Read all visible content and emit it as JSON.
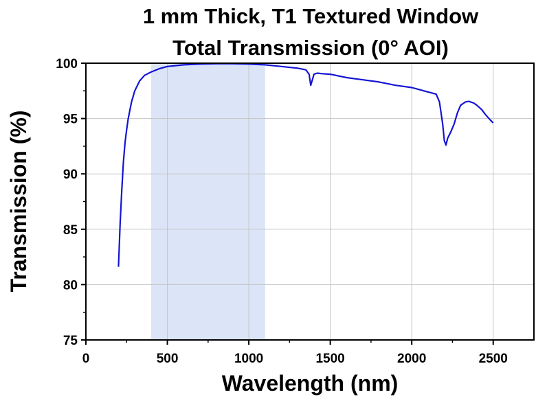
{
  "chart_data": {
    "type": "line",
    "title": "1 mm Thick, T1 Textured Window",
    "subtitle": "Total Transmission (0° AOI)",
    "xlabel": "Wavelength (nm)",
    "ylabel": "Transmission (%)",
    "xlim": [
      0,
      2750
    ],
    "ylim": [
      75,
      100
    ],
    "xticks": [
      0,
      500,
      1000,
      1500,
      2000,
      2500
    ],
    "yticks": [
      75,
      80,
      85,
      90,
      95,
      100
    ],
    "grid": true,
    "shaded_band": {
      "x_start": 400,
      "x_end": 1100,
      "color": "#dce5f7"
    },
    "series": [
      {
        "color": "#1414d4",
        "x": [
          200,
          205,
          210,
          220,
          230,
          240,
          250,
          260,
          280,
          300,
          330,
          360,
          400,
          450,
          500,
          600,
          700,
          800,
          900,
          1000,
          1100,
          1200,
          1300,
          1350,
          1370,
          1380,
          1390,
          1400,
          1420,
          1450,
          1500,
          1600,
          1700,
          1800,
          1900,
          2000,
          2050,
          2100,
          2150,
          2170,
          2190,
          2200,
          2210,
          2220,
          2240,
          2260,
          2280,
          2300,
          2330,
          2350,
          2380,
          2400,
          2430,
          2450,
          2480,
          2500
        ],
        "y": [
          81.6,
          83.5,
          85.5,
          88.5,
          91.0,
          92.8,
          94.0,
          95.0,
          96.5,
          97.5,
          98.4,
          98.9,
          99.2,
          99.5,
          99.7,
          99.85,
          99.92,
          99.95,
          99.95,
          99.92,
          99.85,
          99.7,
          99.55,
          99.4,
          99.0,
          98.0,
          98.5,
          99.0,
          99.1,
          99.05,
          99.0,
          98.7,
          98.5,
          98.3,
          98.0,
          97.8,
          97.6,
          97.4,
          97.2,
          96.5,
          94.5,
          93.0,
          92.6,
          93.2,
          93.8,
          94.5,
          95.5,
          96.2,
          96.5,
          96.55,
          96.4,
          96.2,
          95.8,
          95.4,
          94.9,
          94.6
        ]
      }
    ]
  }
}
